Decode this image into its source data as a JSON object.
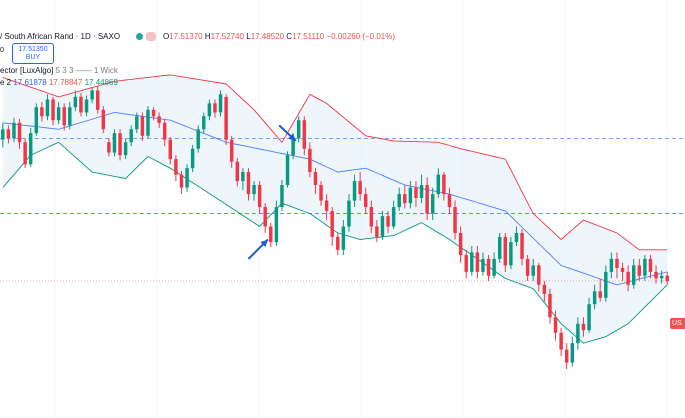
{
  "header": {
    "symbol": "/ South African Rand · 1D · SAXO",
    "open_label": "O",
    "open": "17.51370",
    "high_label": "H",
    "high": "17.52740",
    "low_label": "L",
    "low": "17.48520",
    "close_label": "C",
    "close": "17.51110",
    "change": "−0.00260 (−0.01%)",
    "zero_value": "0",
    "buy_price": "17.51350",
    "buy_label": "BUY"
  },
  "indicator_1": {
    "name": "ector [LuxAlgo]",
    "params": "5 3 3",
    "wick": "1 Wick"
  },
  "indicator_2": {
    "prefix": "e 2",
    "value_basis": "17.61878",
    "value_upper": "17.78847",
    "value_lower": "17.44869"
  },
  "price_tag": {
    "text": "US"
  },
  "colors": {
    "up": "#089981",
    "down": "#f23645",
    "upper_band": "#f23645",
    "basis": "#2962ff",
    "lower_band": "#089981",
    "band_fill": "#e3f0fa",
    "arrow": "#1e56d9",
    "hline": "#2962ff"
  },
  "chart_data": {
    "type": "candlestick",
    "n_bars": 120,
    "y_range": [
      16.0,
      18.6
    ],
    "basis": [
      [
        0,
        18.1
      ],
      [
        10,
        18.05
      ],
      [
        20,
        18.18
      ],
      [
        30,
        18.12
      ],
      [
        40,
        17.95
      ],
      [
        55,
        17.82
      ],
      [
        60,
        17.72
      ],
      [
        65,
        17.75
      ],
      [
        72,
        17.62
      ],
      [
        80,
        17.55
      ],
      [
        90,
        17.42
      ],
      [
        100,
        17.0
      ],
      [
        110,
        16.85
      ],
      [
        119,
        16.95
      ]
    ],
    "upper_band": [
      [
        0,
        18.45
      ],
      [
        10,
        18.3
      ],
      [
        20,
        18.42
      ],
      [
        30,
        18.47
      ],
      [
        40,
        18.4
      ],
      [
        45,
        18.2
      ],
      [
        50,
        17.95
      ],
      [
        55,
        18.32
      ],
      [
        58,
        18.25
      ],
      [
        65,
        18.0
      ],
      [
        70,
        17.96
      ],
      [
        78,
        17.95
      ],
      [
        82,
        17.9
      ],
      [
        90,
        17.82
      ],
      [
        95,
        17.4
      ],
      [
        100,
        17.2
      ],
      [
        104,
        17.35
      ],
      [
        110,
        17.25
      ],
      [
        114,
        17.12
      ],
      [
        119,
        17.12
      ]
    ],
    "lower_band": [
      [
        0,
        17.6
      ],
      [
        5,
        17.85
      ],
      [
        10,
        17.95
      ],
      [
        16,
        17.72
      ],
      [
        22,
        17.67
      ],
      [
        26,
        17.84
      ],
      [
        30,
        17.75
      ],
      [
        40,
        17.47
      ],
      [
        46,
        17.3
      ],
      [
        50,
        17.48
      ],
      [
        55,
        17.4
      ],
      [
        60,
        17.25
      ],
      [
        64,
        17.2
      ],
      [
        70,
        17.23
      ],
      [
        75,
        17.33
      ],
      [
        80,
        17.2
      ],
      [
        85,
        17.05
      ],
      [
        90,
        16.9
      ],
      [
        95,
        16.82
      ],
      [
        100,
        16.55
      ],
      [
        104,
        16.4
      ],
      [
        108,
        16.45
      ],
      [
        112,
        16.55
      ],
      [
        119,
        16.85
      ]
    ],
    "horizontal_lines": [
      17.98,
      17.4
    ],
    "last_price_line": 16.88,
    "arrows": [
      {
        "direction": "down-right",
        "from": [
          49.5,
          18.08
        ],
        "to": [
          52.5,
          17.96
        ]
      },
      {
        "direction": "up-right",
        "from": [
          44,
          17.05
        ],
        "to": [
          47.5,
          17.2
        ]
      }
    ],
    "candles": [
      [
        17.97,
        18.05,
        18.1,
        17.91
      ],
      [
        18.05,
        17.98,
        18.08,
        17.94
      ],
      [
        17.98,
        18.1,
        18.14,
        17.95
      ],
      [
        18.1,
        17.95,
        18.13,
        17.9
      ],
      [
        17.95,
        17.78,
        17.98,
        17.75
      ],
      [
        17.78,
        18.02,
        18.06,
        17.76
      ],
      [
        18.02,
        18.22,
        18.25,
        18.0
      ],
      [
        18.22,
        18.15,
        18.26,
        18.11
      ],
      [
        18.15,
        18.28,
        18.32,
        18.12
      ],
      [
        18.28,
        18.12,
        18.3,
        18.08
      ],
      [
        18.12,
        18.22,
        18.26,
        18.09
      ],
      [
        18.22,
        18.08,
        18.25,
        18.04
      ],
      [
        18.08,
        18.22,
        18.26,
        18.05
      ],
      [
        18.22,
        18.3,
        18.35,
        18.19
      ],
      [
        18.3,
        18.18,
        18.33,
        18.15
      ],
      [
        18.18,
        18.28,
        18.31,
        18.15
      ],
      [
        18.28,
        18.35,
        18.37,
        18.25
      ],
      [
        18.35,
        18.2,
        18.38,
        18.17
      ],
      [
        18.2,
        18.05,
        18.23,
        18.02
      ],
      [
        17.95,
        17.87,
        17.98,
        17.84
      ],
      [
        17.87,
        18.02,
        18.05,
        17.84
      ],
      [
        18.02,
        17.85,
        18.05,
        17.81
      ],
      [
        17.85,
        17.95,
        17.98,
        17.82
      ],
      [
        17.95,
        18.05,
        18.08,
        17.92
      ],
      [
        18.05,
        18.15,
        18.18,
        18.02
      ],
      [
        18.15,
        18.0,
        18.18,
        17.96
      ],
      [
        18.0,
        18.2,
        18.23,
        17.98
      ],
      [
        18.2,
        18.15,
        18.22,
        18.12
      ],
      [
        18.15,
        18.1,
        18.18,
        18.06
      ],
      [
        18.1,
        17.97,
        18.13,
        17.92
      ],
      [
        17.97,
        17.82,
        17.99,
        17.78
      ],
      [
        17.82,
        17.7,
        17.85,
        17.65
      ],
      [
        17.7,
        17.6,
        17.73,
        17.55
      ],
      [
        17.6,
        17.75,
        17.78,
        17.57
      ],
      [
        17.75,
        17.9,
        17.93,
        17.72
      ],
      [
        17.9,
        18.05,
        18.08,
        17.87
      ],
      [
        18.05,
        18.15,
        18.18,
        18.02
      ],
      [
        18.15,
        18.25,
        18.28,
        18.12
      ],
      [
        18.25,
        18.18,
        18.28,
        18.14
      ],
      [
        18.18,
        18.32,
        18.35,
        18.15
      ],
      [
        18.3,
        17.97,
        18.32,
        17.93
      ],
      [
        17.97,
        17.8,
        18.0,
        17.75
      ],
      [
        17.8,
        17.65,
        17.83,
        17.61
      ],
      [
        17.65,
        17.72,
        17.75,
        17.58
      ],
      [
        17.72,
        17.55,
        17.75,
        17.5
      ],
      [
        17.55,
        17.62,
        17.65,
        17.5
      ],
      [
        17.62,
        17.45,
        17.65,
        17.4
      ],
      [
        17.45,
        17.3,
        17.48,
        17.25
      ],
      [
        17.3,
        17.18,
        17.33,
        17.14
      ],
      [
        17.18,
        17.45,
        17.5,
        17.15
      ],
      [
        17.45,
        17.62,
        17.66,
        17.42
      ],
      [
        17.62,
        17.85,
        17.88,
        17.6
      ],
      [
        17.85,
        17.98,
        18.02,
        17.82
      ],
      [
        17.98,
        18.12,
        18.15,
        17.95
      ],
      [
        18.12,
        17.9,
        18.15,
        17.85
      ],
      [
        17.9,
        17.72,
        17.95,
        17.68
      ],
      [
        17.72,
        17.62,
        17.75,
        17.55
      ],
      [
        17.62,
        17.5,
        17.65,
        17.46
      ],
      [
        17.5,
        17.42,
        17.55,
        17.35
      ],
      [
        17.42,
        17.22,
        17.45,
        17.15
      ],
      [
        17.22,
        17.12,
        17.25,
        17.08
      ],
      [
        17.12,
        17.3,
        17.35,
        17.08
      ],
      [
        17.3,
        17.5,
        17.55,
        17.26
      ],
      [
        17.5,
        17.65,
        17.7,
        17.45
      ],
      [
        17.65,
        17.55,
        17.72,
        17.5
      ],
      [
        17.55,
        17.45,
        17.6,
        17.4
      ],
      [
        17.45,
        17.3,
        17.5,
        17.25
      ],
      [
        17.3,
        17.22,
        17.35,
        17.18
      ],
      [
        17.22,
        17.38,
        17.42,
        17.2
      ],
      [
        17.38,
        17.3,
        17.42,
        17.25
      ],
      [
        17.3,
        17.45,
        17.5,
        17.28
      ],
      [
        17.45,
        17.55,
        17.6,
        17.42
      ],
      [
        17.55,
        17.48,
        17.62,
        17.44
      ],
      [
        17.48,
        17.6,
        17.65,
        17.44
      ],
      [
        17.6,
        17.52,
        17.65,
        17.45
      ],
      [
        17.52,
        17.62,
        17.7,
        17.48
      ],
      [
        17.62,
        17.4,
        17.68,
        17.35
      ],
      [
        17.4,
        17.55,
        17.6,
        17.35
      ],
      [
        17.55,
        17.7,
        17.75,
        17.52
      ],
      [
        17.7,
        17.55,
        17.72,
        17.5
      ],
      [
        17.55,
        17.45,
        17.6,
        17.4
      ],
      [
        17.45,
        17.25,
        17.5,
        17.2
      ],
      [
        17.25,
        17.08,
        17.3,
        17.02
      ],
      [
        17.08,
        16.95,
        17.12,
        16.9
      ],
      [
        16.95,
        17.1,
        17.15,
        16.92
      ],
      [
        17.1,
        16.95,
        17.15,
        16.9
      ],
      [
        16.95,
        17.05,
        17.1,
        16.92
      ],
      [
        17.05,
        16.92,
        17.08,
        16.88
      ],
      [
        16.92,
        17.05,
        17.1,
        16.9
      ],
      [
        17.05,
        17.22,
        17.25,
        17.02
      ],
      [
        17.22,
        17.0,
        17.25,
        16.95
      ],
      [
        17.0,
        17.18,
        17.22,
        16.97
      ],
      [
        17.18,
        17.25,
        17.3,
        17.15
      ],
      [
        17.25,
        17.05,
        17.28,
        17.0
      ],
      [
        17.05,
        16.92,
        17.08,
        16.88
      ],
      [
        16.92,
        17.0,
        17.05,
        16.88
      ],
      [
        17.0,
        16.85,
        17.02,
        16.8
      ],
      [
        16.85,
        16.78,
        16.88,
        16.72
      ],
      [
        16.78,
        16.6,
        16.82,
        16.55
      ],
      [
        16.6,
        16.48,
        16.65,
        16.42
      ],
      [
        16.48,
        16.35,
        16.52,
        16.3
      ],
      [
        16.35,
        16.25,
        16.4,
        16.2
      ],
      [
        16.25,
        16.4,
        16.45,
        16.22
      ],
      [
        16.4,
        16.55,
        16.6,
        16.35
      ],
      [
        16.55,
        16.5,
        16.6,
        16.45
      ],
      [
        16.5,
        16.7,
        16.75,
        16.48
      ],
      [
        16.7,
        16.8,
        16.85,
        16.66
      ],
      [
        16.8,
        16.75,
        16.9,
        16.72
      ],
      [
        16.75,
        16.95,
        17.0,
        16.72
      ],
      [
        16.95,
        17.05,
        17.1,
        16.9
      ],
      [
        17.05,
        16.98,
        17.1,
        16.9
      ],
      [
        16.98,
        16.95,
        17.02,
        16.88
      ],
      [
        16.95,
        16.85,
        17.0,
        16.8
      ],
      [
        16.85,
        17.0,
        17.05,
        16.82
      ],
      [
        17.0,
        16.92,
        17.05,
        16.88
      ],
      [
        16.92,
        17.05,
        17.08,
        16.88
      ],
      [
        17.05,
        16.95,
        17.08,
        16.9
      ],
      [
        16.95,
        16.9,
        17.0,
        16.86
      ],
      [
        16.9,
        16.92,
        16.96,
        16.86
      ],
      [
        16.92,
        16.88,
        16.95,
        16.85
      ]
    ]
  }
}
